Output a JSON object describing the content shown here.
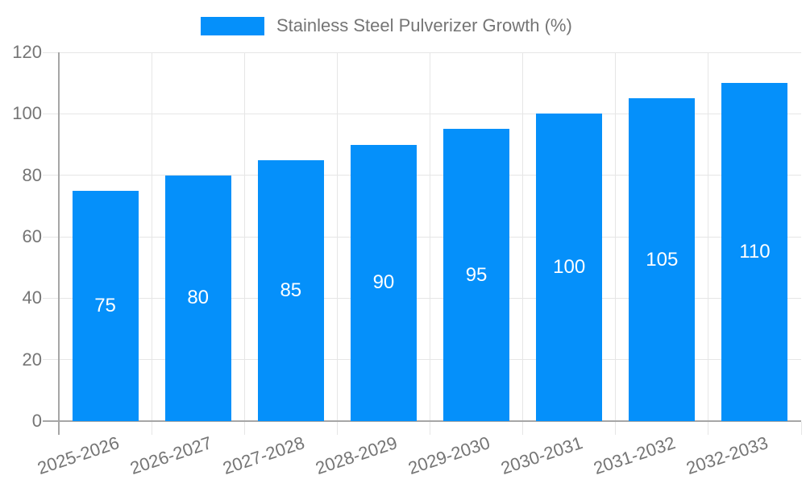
{
  "chart_data": {
    "type": "bar",
    "title": "",
    "legend_label": "Stainless Steel Pulverizer Growth (%)",
    "legend_position": "top-center",
    "categories": [
      "2025-2026",
      "2026-2027",
      "2027-2028",
      "2028-2029",
      "2029-2030",
      "2030-2031",
      "2031-2032",
      "2032-2033"
    ],
    "values": [
      75,
      80,
      85,
      90,
      95,
      100,
      105,
      110
    ],
    "xlabel": "",
    "ylabel": "",
    "ylim": [
      0,
      120
    ],
    "yticks": [
      0,
      20,
      40,
      60,
      80,
      100,
      120
    ],
    "grid": true,
    "bar_labels_position": "inside-center",
    "colors": {
      "bar": "#0590fa",
      "bar_label_text": "#ffffff",
      "axis_text": "#757575",
      "gridline": "#e6e6e6",
      "axis_line": "#a6a6a6",
      "background": "#ffffff"
    }
  }
}
